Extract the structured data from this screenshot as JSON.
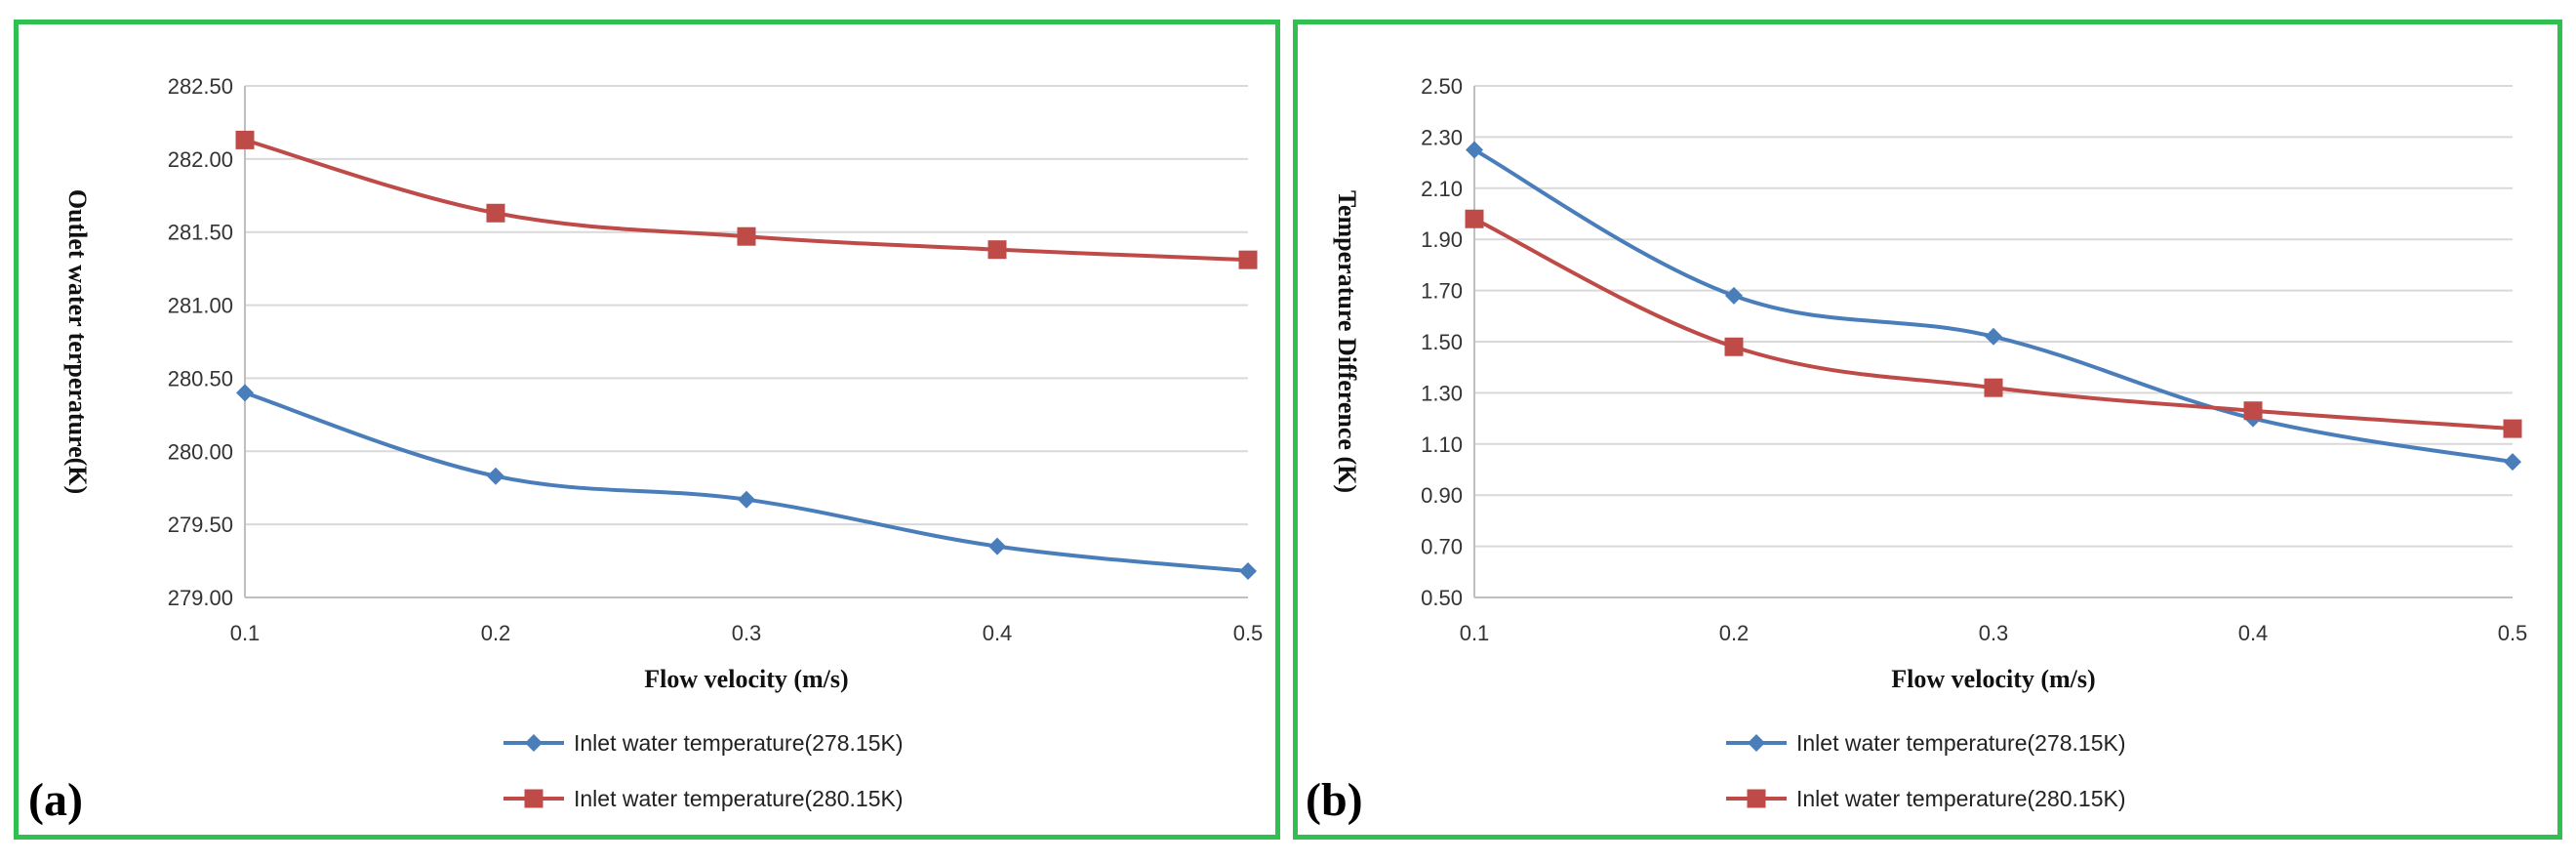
{
  "colors": {
    "series_blue": "#4a7ebb",
    "series_red": "#be4b48",
    "frame_green": "#2fc04f"
  },
  "chart_data": [
    {
      "type": "line",
      "panel_label": "(a)",
      "xlabel": "Flow velocity (m/s)",
      "ylabel": "Outlet water terperature(K)",
      "x": [
        0.1,
        0.2,
        0.3,
        0.4,
        0.5
      ],
      "x_tick_labels": [
        "0.1",
        "0.2",
        "0.3",
        "0.4",
        "0.5"
      ],
      "ylim": [
        279.0,
        282.5
      ],
      "y_ticks": [
        279.0,
        279.5,
        280.0,
        280.5,
        281.0,
        281.5,
        282.0,
        282.5
      ],
      "y_tick_labels": [
        "279.00",
        "279.50",
        "280.00",
        "280.50",
        "281.00",
        "281.50",
        "282.00",
        "282.50"
      ],
      "grid": true,
      "legend_position": "bottom-center",
      "series": [
        {
          "name": "Inlet water temperature(278.15K)",
          "marker": "diamond",
          "color": "#4a7ebb",
          "values": [
            280.4,
            279.83,
            279.67,
            279.35,
            279.18
          ]
        },
        {
          "name": "Inlet water temperature(280.15K)",
          "marker": "square",
          "color": "#be4b48",
          "values": [
            282.13,
            281.63,
            281.47,
            281.38,
            281.31
          ]
        }
      ]
    },
    {
      "type": "line",
      "panel_label": "(b)",
      "xlabel": "Flow velocity (m/s)",
      "ylabel": "Temperature Difference (K)",
      "x": [
        0.1,
        0.2,
        0.3,
        0.4,
        0.5
      ],
      "x_tick_labels": [
        "0.1",
        "0.2",
        "0.3",
        "0.4",
        "0.5"
      ],
      "ylim": [
        0.5,
        2.5
      ],
      "y_ticks": [
        0.5,
        0.7,
        0.9,
        1.1,
        1.3,
        1.5,
        1.7,
        1.9,
        2.1,
        2.3,
        2.5
      ],
      "y_tick_labels": [
        "0.50",
        "0.70",
        "0.90",
        "1.10",
        "1.30",
        "1.50",
        "1.70",
        "1.90",
        "2.10",
        "2.30",
        "2.50"
      ],
      "grid": true,
      "legend_position": "bottom-center",
      "series": [
        {
          "name": "Inlet water temperature(278.15K)",
          "marker": "diamond",
          "color": "#4a7ebb",
          "values": [
            2.25,
            1.68,
            1.52,
            1.2,
            1.03
          ]
        },
        {
          "name": "Inlet water temperature(280.15K)",
          "marker": "square",
          "color": "#be4b48",
          "values": [
            1.98,
            1.48,
            1.32,
            1.23,
            1.16
          ]
        }
      ]
    }
  ]
}
